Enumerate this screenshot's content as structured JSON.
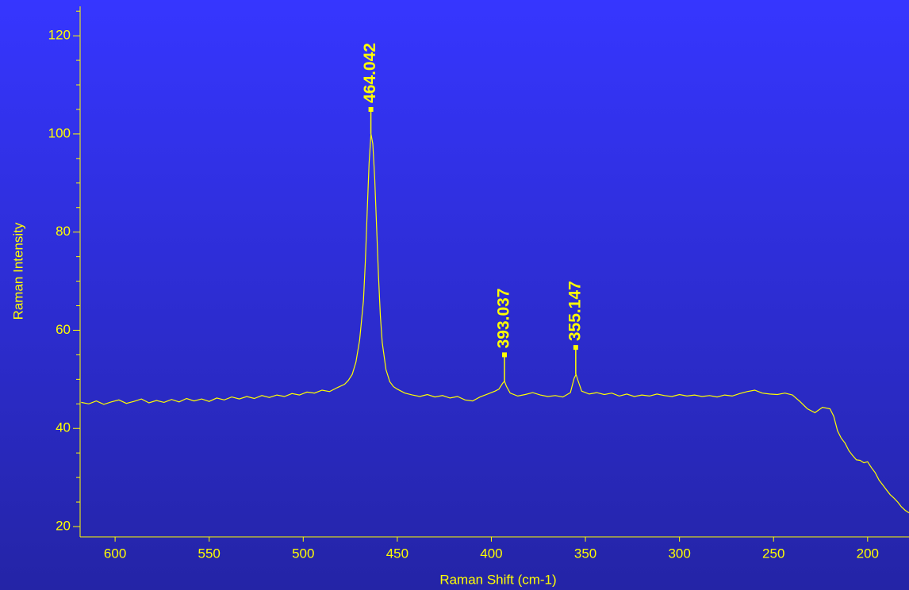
{
  "chart_data": {
    "type": "line",
    "xlabel": "Raman Shift (cm-1)",
    "ylabel": "Raman Intensity",
    "x": [
      618,
      614,
      610,
      606,
      602,
      598,
      594,
      590,
      586,
      582,
      578,
      574,
      570,
      566,
      562,
      558,
      554,
      550,
      546,
      542,
      538,
      534,
      530,
      526,
      522,
      518,
      514,
      510,
      506,
      502,
      498,
      494,
      490,
      486,
      482,
      478,
      476,
      474,
      472,
      470,
      468,
      467,
      466,
      465,
      464,
      463,
      462,
      461,
      460,
      459,
      458,
      456,
      454,
      452,
      450,
      446,
      442,
      438,
      434,
      430,
      426,
      422,
      418,
      414,
      410,
      406,
      402,
      398,
      396,
      394,
      393,
      392,
      390,
      386,
      382,
      378,
      374,
      370,
      366,
      362,
      358,
      356,
      355,
      354,
      352,
      348,
      344,
      340,
      336,
      332,
      328,
      324,
      320,
      316,
      312,
      308,
      304,
      300,
      296,
      292,
      288,
      284,
      280,
      276,
      272,
      268,
      264,
      260,
      256,
      252,
      248,
      244,
      240,
      236,
      232,
      228,
      224,
      220,
      218,
      216,
      214,
      212,
      210,
      208,
      206,
      204,
      202,
      200,
      198,
      196,
      194,
      192,
      190,
      188,
      186,
      184,
      182,
      180,
      178
    ],
    "series": [
      {
        "name": "spectrum",
        "color": "#ffff00",
        "values": [
          45.3,
          45.0,
          45.6,
          44.9,
          45.4,
          45.8,
          45.1,
          45.5,
          46.0,
          45.2,
          45.7,
          45.3,
          45.9,
          45.4,
          46.1,
          45.6,
          46.0,
          45.5,
          46.2,
          45.8,
          46.4,
          46.0,
          46.5,
          46.1,
          46.7,
          46.3,
          46.8,
          46.5,
          47.1,
          46.8,
          47.4,
          47.2,
          47.8,
          47.5,
          48.3,
          49.0,
          49.8,
          51.0,
          53.5,
          58.0,
          66.0,
          74.0,
          84.0,
          94.0,
          100.0,
          98.0,
          91.0,
          81.0,
          71.0,
          63.0,
          57.5,
          52.0,
          49.5,
          48.5,
          48.0,
          47.2,
          46.8,
          46.5,
          46.9,
          46.4,
          46.7,
          46.2,
          46.5,
          45.8,
          45.6,
          46.4,
          47.0,
          47.6,
          48.0,
          49.2,
          49.6,
          48.6,
          47.2,
          46.6,
          46.9,
          47.3,
          46.8,
          46.5,
          46.7,
          46.4,
          47.3,
          50.2,
          51.0,
          49.8,
          47.6,
          47.0,
          47.3,
          46.9,
          47.2,
          46.6,
          47.0,
          46.5,
          46.8,
          46.6,
          47.0,
          46.7,
          46.5,
          46.9,
          46.6,
          46.8,
          46.5,
          46.7,
          46.4,
          46.8,
          46.6,
          47.1,
          47.5,
          47.8,
          47.2,
          47.0,
          46.9,
          47.2,
          46.8,
          45.5,
          44.0,
          43.2,
          44.3,
          44.0,
          42.5,
          39.5,
          38.0,
          37.0,
          35.5,
          34.5,
          33.6,
          33.5,
          33.0,
          33.2,
          32.0,
          31.0,
          29.5,
          28.5,
          27.5,
          26.5,
          25.8,
          25.0,
          24.0,
          23.3,
          22.8
        ]
      }
    ],
    "xlim": [
      618.6,
      178
    ],
    "xticks": [
      600,
      550,
      500,
      450,
      400,
      350,
      300,
      250,
      200
    ],
    "ylim": [
      17.9,
      126
    ],
    "yticks": [
      20,
      40,
      60,
      80,
      100,
      120
    ],
    "yminorticks": [
      25,
      30,
      35,
      45,
      50,
      55,
      65,
      70,
      75,
      85,
      90,
      95,
      105,
      110,
      115,
      125
    ],
    "annotations": [
      {
        "label": "464.042",
        "x": 464.042,
        "y": 105
      },
      {
        "label": "393.037",
        "x": 393.037,
        "y": 55
      },
      {
        "label": "355.147",
        "x": 355.147,
        "y": 56.5
      }
    ]
  }
}
